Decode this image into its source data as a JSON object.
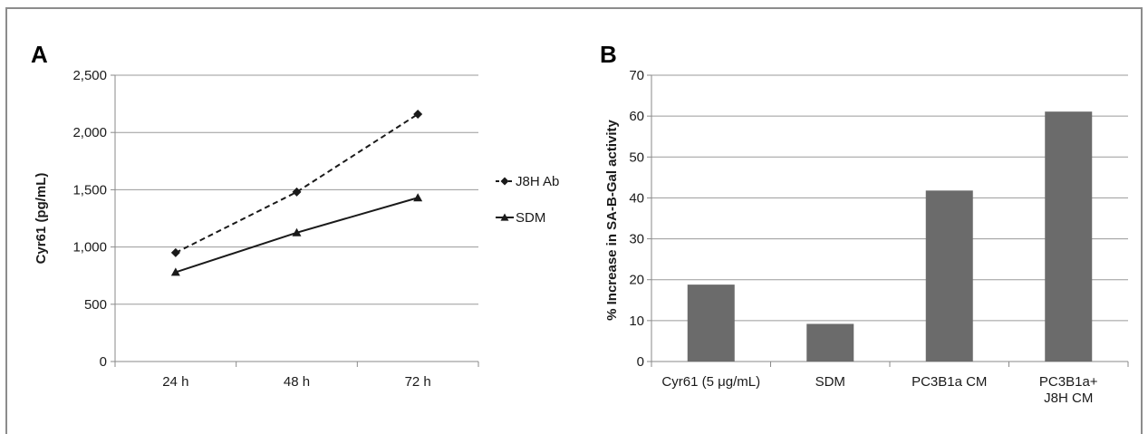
{
  "figure": {
    "panel_a_label": "A",
    "panel_b_label": "B"
  },
  "chart_data": [
    {
      "type": "line",
      "panel": "A",
      "categories": [
        "24 h",
        "48 h",
        "72 h"
      ],
      "series": [
        {
          "name": "J8H Ab",
          "values": [
            950,
            1480,
            2160
          ],
          "line_style": "dashed",
          "marker": "diamond",
          "color": "#1a1a1a"
        },
        {
          "name": "SDM",
          "values": [
            780,
            1125,
            1430
          ],
          "line_style": "solid",
          "marker": "triangle",
          "color": "#1a1a1a"
        }
      ],
      "ylabel": "Cyr61 (pg/mL)",
      "ylim": [
        0,
        2500
      ],
      "yticks": [
        0,
        500,
        1000,
        1500,
        2000,
        2500
      ],
      "ytick_labels": [
        "0",
        "500",
        "1,000",
        "1,500",
        "2,000",
        "2,500"
      ],
      "grid": true,
      "legend_placement": "right"
    },
    {
      "type": "bar",
      "panel": "B",
      "categories": [
        [
          "Cyr61 (5 μg/mL)"
        ],
        [
          "SDM"
        ],
        [
          "PC3B1a CM"
        ],
        [
          "PC3B1a+",
          "J8H CM"
        ]
      ],
      "values": [
        18.8,
        9.2,
        41.8,
        61.1
      ],
      "bar_color": "#6b6b6b",
      "ylabel": "% Increase in SA-B-Gal activity",
      "ylim": [
        0,
        70
      ],
      "yticks": [
        0,
        10,
        20,
        30,
        40,
        50,
        60,
        70
      ],
      "ytick_labels": [
        "0",
        "10",
        "20",
        "30",
        "40",
        "50",
        "60",
        "70"
      ],
      "grid": true
    }
  ]
}
